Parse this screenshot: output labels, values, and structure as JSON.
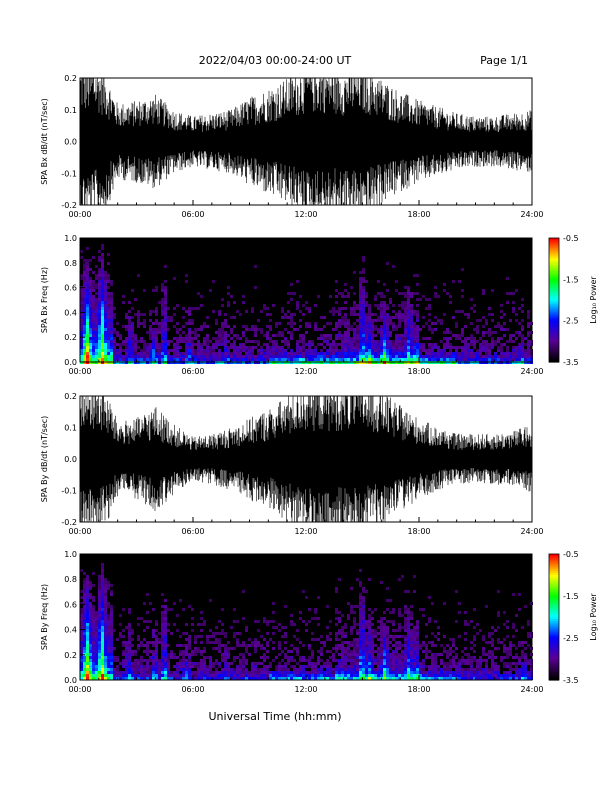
{
  "header": {
    "title": "2022/04/03  00:00-24:00 UT",
    "page_label": "Page 1/1"
  },
  "xlabel": "Universal Time (hh:mm)",
  "colorbar": {
    "label": "Log₁₀ Power",
    "ticks": [
      "-0.5",
      "-1.5",
      "-2.5",
      "-3.5"
    ],
    "range": [
      -3.5,
      -0.5
    ],
    "colors": [
      "#000000",
      "#5a0096",
      "#0000ff",
      "#00ffff",
      "#00ff00",
      "#ffff00",
      "#ff0000"
    ]
  },
  "chart_data": [
    {
      "type": "line",
      "title": "",
      "ylabel": "SPA Bx dB/dt (nT/sec)",
      "xlabel": "",
      "xlim": [
        0,
        24
      ],
      "ylim": [
        -0.2,
        0.2
      ],
      "x_ticks": [
        "00:00",
        "06:00",
        "12:00",
        "18:00",
        "24:00"
      ],
      "y_ticks": [
        "0.2",
        "0.1",
        "0.0",
        "-0.1",
        "-0.2"
      ],
      "series": [
        {
          "x_hours": [
            0,
            0.5,
            1,
            1.5,
            2,
            3,
            4,
            5,
            6,
            7,
            8,
            9,
            10,
            11,
            12,
            13,
            14,
            15,
            16,
            17,
            18,
            19,
            20,
            21,
            22,
            23,
            24
          ],
          "amplitude": [
            0.25,
            0.25,
            0.25,
            0.2,
            0.12,
            0.13,
            0.15,
            0.1,
            0.08,
            0.09,
            0.1,
            0.14,
            0.17,
            0.2,
            0.25,
            0.25,
            0.23,
            0.25,
            0.2,
            0.16,
            0.13,
            0.11,
            0.09,
            0.08,
            0.08,
            0.09,
            0.1
          ]
        }
      ]
    },
    {
      "type": "heatmap",
      "title": "",
      "ylabel": "SPA Bx Freq (Hz)",
      "xlabel": "",
      "xlim": [
        0,
        24
      ],
      "ylim": [
        0.0,
        1.0
      ],
      "x_ticks": [
        "00:00",
        "06:00",
        "12:00",
        "18:00",
        "24:00"
      ],
      "y_ticks": [
        "1.0",
        "0.8",
        "0.6",
        "0.4",
        "0.2",
        "0.0"
      ],
      "background_log_power": -3.5,
      "peak_log_power": -1.5,
      "bursts": [
        {
          "hour": 0.3,
          "top_freq": 0.9,
          "strength": 1.0
        },
        {
          "hour": 1.1,
          "top_freq": 1.0,
          "strength": 0.9
        },
        {
          "hour": 2.6,
          "top_freq": 0.6,
          "strength": 0.4
        },
        {
          "hour": 3.8,
          "top_freq": 0.5,
          "strength": 0.45
        },
        {
          "hour": 4.4,
          "top_freq": 0.8,
          "strength": 0.55
        },
        {
          "hour": 5.7,
          "top_freq": 0.5,
          "strength": 0.3
        },
        {
          "hour": 7.7,
          "top_freq": 0.4,
          "strength": 0.3
        },
        {
          "hour": 14.9,
          "top_freq": 0.95,
          "strength": 0.6
        },
        {
          "hour": 15.3,
          "top_freq": 0.5,
          "strength": 0.5
        },
        {
          "hour": 16.1,
          "top_freq": 0.55,
          "strength": 0.7
        },
        {
          "hour": 17.4,
          "top_freq": 0.7,
          "strength": 0.55
        },
        {
          "hour": 17.8,
          "top_freq": 0.45,
          "strength": 0.4
        },
        {
          "hour": 23.4,
          "top_freq": 0.3,
          "strength": 0.35
        }
      ]
    },
    {
      "type": "line",
      "title": "",
      "ylabel": "SPA By dB/dt (nT/sec)",
      "xlabel": "",
      "xlim": [
        0,
        24
      ],
      "ylim": [
        -0.2,
        0.2
      ],
      "x_ticks": [
        "00:00",
        "06:00",
        "12:00",
        "18:00",
        "24:00"
      ],
      "y_ticks": [
        "0.2",
        "0.1",
        "0.0",
        "-0.1",
        "-0.2"
      ],
      "series": [
        {
          "x_hours": [
            0,
            0.5,
            1,
            1.5,
            2,
            3,
            4,
            5,
            6,
            7,
            8,
            9,
            10,
            11,
            12,
            13,
            14,
            15,
            16,
            17,
            18,
            19,
            20,
            21,
            22,
            23,
            24
          ],
          "amplitude": [
            0.25,
            0.25,
            0.25,
            0.2,
            0.12,
            0.13,
            0.17,
            0.11,
            0.07,
            0.08,
            0.1,
            0.13,
            0.16,
            0.2,
            0.25,
            0.25,
            0.25,
            0.25,
            0.22,
            0.17,
            0.13,
            0.1,
            0.08,
            0.08,
            0.08,
            0.09,
            0.11
          ]
        }
      ]
    },
    {
      "type": "heatmap",
      "title": "",
      "ylabel": "SPA By Freq (Hz)",
      "xlabel": "Universal Time (hh:mm)",
      "xlim": [
        0,
        24
      ],
      "ylim": [
        0.0,
        1.0
      ],
      "x_ticks": [
        "00:00",
        "06:00",
        "12:00",
        "18:00",
        "24:00"
      ],
      "y_ticks": [
        "1.0",
        "0.8",
        "0.6",
        "0.4",
        "0.2",
        "0.0"
      ],
      "background_log_power": -3.5,
      "peak_log_power": -1.5,
      "bursts": [
        {
          "hour": 0.3,
          "top_freq": 0.9,
          "strength": 1.0
        },
        {
          "hour": 1.1,
          "top_freq": 1.0,
          "strength": 0.95
        },
        {
          "hour": 2.5,
          "top_freq": 0.6,
          "strength": 0.4
        },
        {
          "hour": 3.9,
          "top_freq": 0.5,
          "strength": 0.45
        },
        {
          "hour": 4.4,
          "top_freq": 0.8,
          "strength": 0.55
        },
        {
          "hour": 5.6,
          "top_freq": 0.45,
          "strength": 0.3
        },
        {
          "hour": 7.7,
          "top_freq": 0.4,
          "strength": 0.3
        },
        {
          "hour": 14.9,
          "top_freq": 0.95,
          "strength": 0.65
        },
        {
          "hour": 15.3,
          "top_freq": 0.5,
          "strength": 0.45
        },
        {
          "hour": 16.1,
          "top_freq": 0.55,
          "strength": 0.6
        },
        {
          "hour": 17.4,
          "top_freq": 0.7,
          "strength": 0.55
        },
        {
          "hour": 17.8,
          "top_freq": 0.45,
          "strength": 0.4
        },
        {
          "hour": 23.5,
          "top_freq": 0.3,
          "strength": 0.35
        }
      ]
    }
  ]
}
